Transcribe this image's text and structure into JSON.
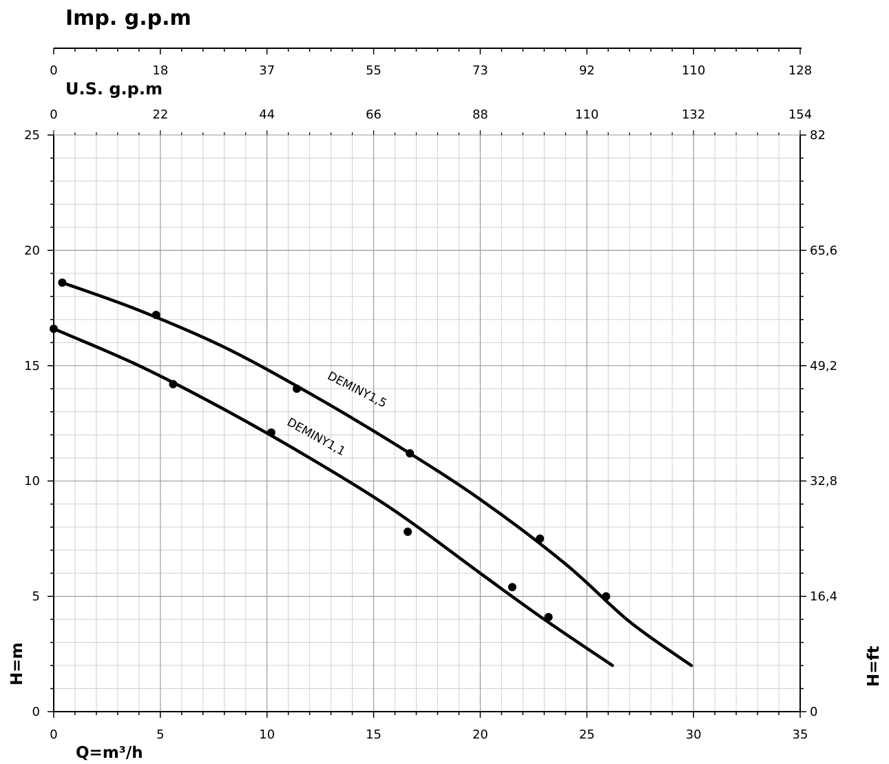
{
  "chart_data": {
    "type": "line",
    "x_label": "Q=m³/h",
    "y_label": "H=m",
    "y2_label": "H=ft",
    "top_axis_1_label": "Imp. g.p.m",
    "top_axis_2_label": "U.S. g.p.m",
    "xlim": [
      0,
      35
    ],
    "ylim": [
      0,
      25
    ],
    "grid": true,
    "x_ticks": [
      "0",
      "5",
      "10",
      "15",
      "20",
      "25",
      "30",
      "35"
    ],
    "y_ticks": [
      "0",
      "5",
      "10",
      "15",
      "20",
      "25"
    ],
    "y2_ticks": [
      "0",
      "16,4",
      "32,8",
      "49,2",
      "65,6",
      "82"
    ],
    "imp_gpm_ticks": [
      "0",
      "18",
      "37",
      "55",
      "73",
      "92",
      "110",
      "128"
    ],
    "us_gpm_ticks": [
      "0",
      "22",
      "44",
      "66",
      "88",
      "110",
      "132",
      "154"
    ],
    "series": [
      {
        "name": "DEMINY1,5",
        "curve": [
          [
            0.4,
            18.6
          ],
          [
            4,
            17.4
          ],
          [
            8,
            15.8
          ],
          [
            12,
            13.8
          ],
          [
            16,
            11.6
          ],
          [
            20,
            9.2
          ],
          [
            24,
            6.4
          ],
          [
            27,
            3.9
          ],
          [
            29.9,
            2.0
          ]
        ],
        "markers": [
          [
            0.4,
            18.6
          ],
          [
            4.8,
            17.2
          ],
          [
            11.4,
            14.0
          ],
          [
            16.7,
            11.2
          ],
          [
            22.8,
            7.5
          ],
          [
            25.9,
            5.0
          ]
        ]
      },
      {
        "name": "DEMINY1,1",
        "curve": [
          [
            0,
            16.6
          ],
          [
            4,
            15.0
          ],
          [
            8,
            13.1
          ],
          [
            12,
            11.0
          ],
          [
            16,
            8.7
          ],
          [
            20,
            6.0
          ],
          [
            23,
            4.0
          ],
          [
            26.2,
            2.0
          ]
        ],
        "markers": [
          [
            0,
            16.6
          ],
          [
            5.6,
            14.2
          ],
          [
            10.2,
            12.1
          ],
          [
            16.6,
            7.8
          ],
          [
            21.5,
            5.4
          ],
          [
            23.2,
            4.1
          ]
        ]
      }
    ]
  }
}
